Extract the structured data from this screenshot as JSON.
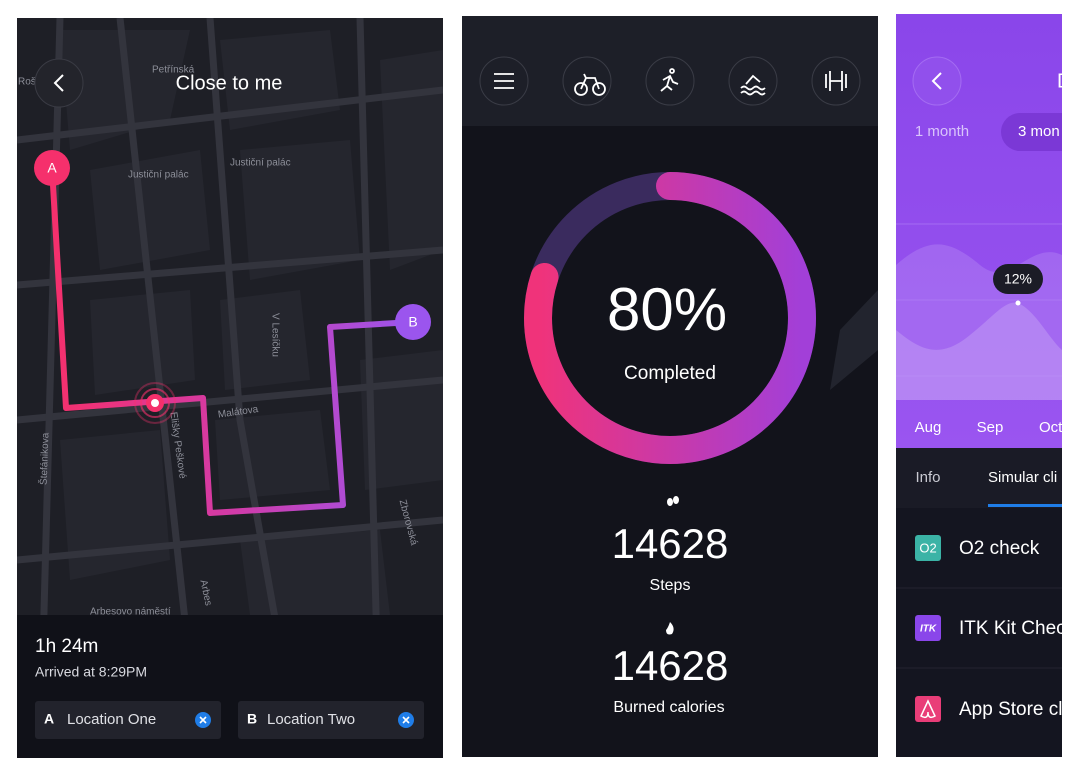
{
  "map_screen": {
    "title": "Close to me",
    "map_labels": [
      "Rošický",
      "Petřínská",
      "Justiční palác",
      "Justiční palác",
      "V Lesíčku",
      "Malátova",
      "Elišky Peškové",
      "Štefánikova",
      "Zborovská",
      "Arbes",
      "Arbesovo náměstí"
    ],
    "start_marker": "A",
    "end_marker": "B",
    "duration": "1h 24m",
    "arrival": "Arrived at 8:29PM",
    "locations": [
      {
        "letter": "A",
        "name": "Location One"
      },
      {
        "letter": "B",
        "name": "Location Two"
      }
    ]
  },
  "activity_screen": {
    "progress": {
      "value": 80,
      "label": "80%"
    },
    "progress_caption": "Completed",
    "stats": [
      {
        "value": 14628,
        "label": "Steps"
      },
      {
        "value": 14628,
        "label": "Burned calories"
      }
    ]
  },
  "stats_screen": {
    "title": "D",
    "ranges": [
      "1 month",
      "3 mon"
    ],
    "tooltip": "12%",
    "months": [
      "Aug",
      "Sep",
      "Oct"
    ],
    "tabs": [
      "Info",
      "Simular cli"
    ],
    "items": [
      {
        "icon": "O2",
        "name": "O2 check"
      },
      {
        "icon": "ITK",
        "name": "ITK Kit Chec"
      },
      {
        "name": "App Store cl"
      }
    ]
  }
}
